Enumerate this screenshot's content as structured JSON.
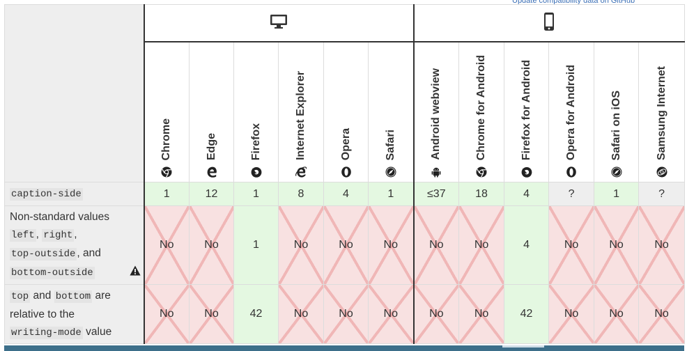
{
  "top_link": "Update compatibility data on GitHub",
  "platforms": [
    {
      "name": "desktop",
      "icon": "desktop-monitor-icon"
    },
    {
      "name": "mobile",
      "icon": "mobile-phone-icon"
    }
  ],
  "browsers": [
    {
      "label": "Chrome",
      "icon": "chrome-icon"
    },
    {
      "label": "Edge",
      "icon": "edge-icon"
    },
    {
      "label": "Firefox",
      "icon": "firefox-icon"
    },
    {
      "label": "Internet Explorer",
      "icon": "internet-explorer-icon"
    },
    {
      "label": "Opera",
      "icon": "opera-icon"
    },
    {
      "label": "Safari",
      "icon": "safari-icon"
    },
    {
      "label": "Android webview",
      "icon": "android-icon"
    },
    {
      "label": "Chrome for Android",
      "icon": "chrome-icon"
    },
    {
      "label": "Firefox for Android",
      "icon": "firefox-icon"
    },
    {
      "label": "Opera for Android",
      "icon": "opera-icon"
    },
    {
      "label": "Safari on iOS",
      "icon": "safari-icon"
    },
    {
      "label": "Samsung Internet",
      "icon": "samsung-internet-icon"
    }
  ],
  "rows": [
    {
      "feature": {
        "code1": "caption-side"
      },
      "cells": [
        {
          "text": "1",
          "status": "yes"
        },
        {
          "text": "12",
          "status": "yes"
        },
        {
          "text": "1",
          "status": "yes"
        },
        {
          "text": "8",
          "status": "yes"
        },
        {
          "text": "4",
          "status": "yes"
        },
        {
          "text": "1",
          "status": "yes"
        },
        {
          "text": "≤37",
          "status": "yes"
        },
        {
          "text": "18",
          "status": "yes"
        },
        {
          "text": "4",
          "status": "yes"
        },
        {
          "text": "?",
          "status": "unknown"
        },
        {
          "text": "1",
          "status": "yes"
        },
        {
          "text": "?",
          "status": "unknown"
        }
      ]
    },
    {
      "feature": {
        "text1": "Non-standard values",
        "code1": "left",
        "sep1": ",",
        "code2": "right",
        "sep2": ",",
        "code3": "top-outside",
        "sep3": ", and",
        "code4": "bottom-outside",
        "warning_icon": "warning-triangle-icon"
      },
      "cells": [
        {
          "text": "No",
          "status": "no"
        },
        {
          "text": "No",
          "status": "no"
        },
        {
          "text": "1",
          "status": "yes"
        },
        {
          "text": "No",
          "status": "no"
        },
        {
          "text": "No",
          "status": "no"
        },
        {
          "text": "No",
          "status": "no"
        },
        {
          "text": "No",
          "status": "no"
        },
        {
          "text": "No",
          "status": "no"
        },
        {
          "text": "4",
          "status": "yes"
        },
        {
          "text": "No",
          "status": "no"
        },
        {
          "text": "No",
          "status": "no"
        },
        {
          "text": "No",
          "status": "no"
        }
      ]
    },
    {
      "feature": {
        "code1": "top",
        "text1": "and",
        "code2": "bottom",
        "text2": "are",
        "text3": "relative to the",
        "code3": "writing-mode",
        "text4": "value"
      },
      "cells": [
        {
          "text": "No",
          "status": "no"
        },
        {
          "text": "No",
          "status": "no"
        },
        {
          "text": "42",
          "status": "yes"
        },
        {
          "text": "No",
          "status": "no"
        },
        {
          "text": "No",
          "status": "no"
        },
        {
          "text": "No",
          "status": "no"
        },
        {
          "text": "No",
          "status": "no"
        },
        {
          "text": "No",
          "status": "no"
        },
        {
          "text": "42",
          "status": "yes"
        },
        {
          "text": "No",
          "status": "no"
        },
        {
          "text": "No",
          "status": "no"
        },
        {
          "text": "No",
          "status": "no"
        }
      ]
    }
  ]
}
